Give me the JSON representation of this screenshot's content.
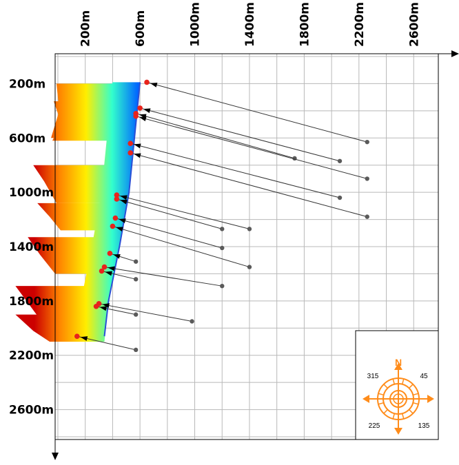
{
  "x_axis": {
    "ticks": [
      {
        "value": 200,
        "label": "200m"
      },
      {
        "value": 600,
        "label": "600m"
      },
      {
        "value": 1000,
        "label": "1000m"
      },
      {
        "value": 1400,
        "label": "1400m"
      },
      {
        "value": 1800,
        "label": "1800m"
      },
      {
        "value": 2200,
        "label": "2200m"
      },
      {
        "value": 2600,
        "label": "2600m"
      }
    ]
  },
  "y_axis": {
    "ticks": [
      {
        "value": 200,
        "label": "200m"
      },
      {
        "value": 600,
        "label": "600m"
      },
      {
        "value": 1000,
        "label": "1000m"
      },
      {
        "value": 1400,
        "label": "1400m"
      },
      {
        "value": 1800,
        "label": "1800m"
      },
      {
        "value": 2200,
        "label": "2200m"
      },
      {
        "value": 2600,
        "label": "2600m"
      }
    ]
  },
  "chart_data": {
    "type": "scatter",
    "title": "",
    "xlabel": "",
    "ylabel": "",
    "xlim": [
      -20,
      2780
    ],
    "ylim": [
      -20,
      2820
    ],
    "y_inverted": true,
    "grid": true,
    "well_trace": [
      [
        600,
        190
      ],
      [
        520,
        1000
      ],
      [
        450,
        1400
      ],
      [
        370,
        1800
      ],
      [
        340,
        2060
      ]
    ],
    "rays": [
      {
        "from": [
          2260,
          630
        ],
        "to": [
          650,
          190
        ]
      },
      {
        "from": [
          2060,
          770
        ],
        "to": [
          600,
          380
        ]
      },
      {
        "from": [
          1730,
          750
        ],
        "to": [
          570,
          420
        ]
      },
      {
        "from": [
          2260,
          900
        ],
        "to": [
          570,
          440
        ]
      },
      {
        "from": [
          2060,
          1040
        ],
        "to": [
          530,
          640
        ]
      },
      {
        "from": [
          2260,
          1180
        ],
        "to": [
          530,
          710
        ]
      },
      {
        "from": [
          1400,
          1270
        ],
        "to": [
          430,
          1020
        ]
      },
      {
        "from": [
          1200,
          1270
        ],
        "to": [
          430,
          1050
        ]
      },
      {
        "from": [
          1200,
          1410
        ],
        "to": [
          420,
          1190
        ]
      },
      {
        "from": [
          1400,
          1550
        ],
        "to": [
          400,
          1250
        ]
      },
      {
        "from": [
          570,
          1510
        ],
        "to": [
          380,
          1450
        ]
      },
      {
        "from": [
          1200,
          1690
        ],
        "to": [
          340,
          1550
        ]
      },
      {
        "from": [
          570,
          1640
        ],
        "to": [
          320,
          1580
        ]
      },
      {
        "from": [
          980,
          1950
        ],
        "to": [
          300,
          1820
        ]
      },
      {
        "from": [
          570,
          1900
        ],
        "to": [
          280,
          1840
        ]
      },
      {
        "from": [
          570,
          2160
        ],
        "to": [
          140,
          2060
        ]
      }
    ],
    "response_lobes": [
      [
        [
          -10,
          200
        ],
        [
          10,
          400
        ],
        [
          -50,
          600
        ]
      ],
      [
        [
          -30,
          330
        ],
        [
          20,
          480
        ],
        [
          -40,
          620
        ]
      ],
      [
        [
          -180,
          800
        ],
        [
          -100,
          920
        ],
        [
          -10,
          1080
        ]
      ],
      [
        [
          -150,
          1080
        ],
        [
          -60,
          1180
        ],
        [
          20,
          1280
        ]
      ],
      [
        [
          -220,
          1330
        ],
        [
          -130,
          1460
        ],
        [
          -20,
          1600
        ]
      ],
      [
        [
          -310,
          1690
        ],
        [
          -200,
          1840
        ],
        [
          -90,
          1990
        ]
      ],
      [
        [
          -310,
          1900
        ],
        [
          -180,
          2020
        ],
        [
          -60,
          2100
        ]
      ]
    ]
  },
  "compass": {
    "north_label": "N",
    "labels": {
      "nw": "315",
      "ne": "45",
      "sw": "225",
      "se": "135"
    },
    "color": "#ff8c1a"
  },
  "colors": {
    "grid": "#b8b8b8",
    "frame": "#000000",
    "ray": "#333333",
    "ray_origin": "#5a5a5a",
    "ray_tip": "#e8231c",
    "well": "#2a4fd6"
  }
}
